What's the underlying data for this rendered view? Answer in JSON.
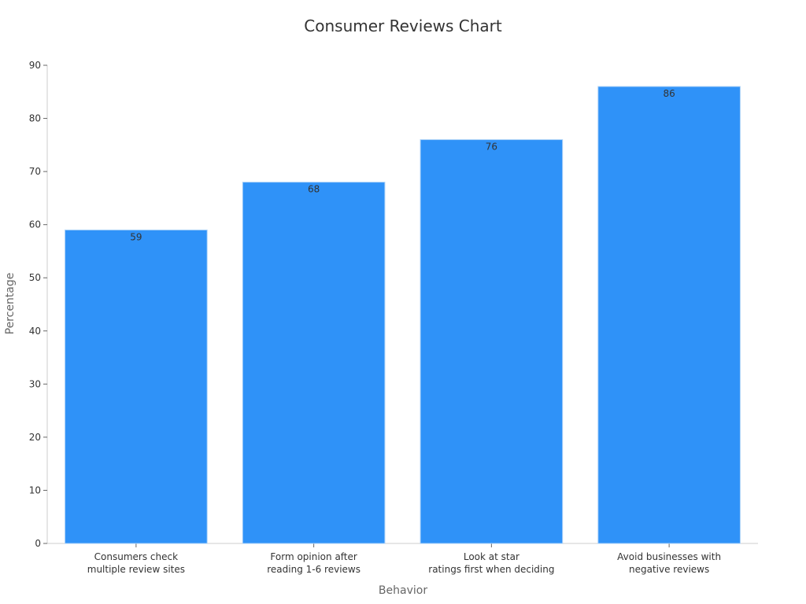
{
  "chart_data": {
    "type": "bar",
    "title": "Consumer Reviews Chart",
    "xlabel": "Behavior",
    "ylabel": "Percentage",
    "categories": [
      [
        "Consumers check",
        "multiple review sites"
      ],
      [
        "Form opinion after",
        "reading 1-6 reviews"
      ],
      [
        "Look at star",
        "ratings first when deciding"
      ],
      [
        "Avoid businesses with",
        "negative reviews"
      ]
    ],
    "values": [
      59,
      68,
      76,
      86
    ],
    "ylim": [
      0,
      90
    ],
    "yticks": [
      0,
      10,
      20,
      30,
      40,
      50,
      60,
      70,
      80,
      90
    ],
    "grid": false,
    "bar_color": "#2f92f8",
    "bar_edge_color": "#a9d0f7"
  }
}
